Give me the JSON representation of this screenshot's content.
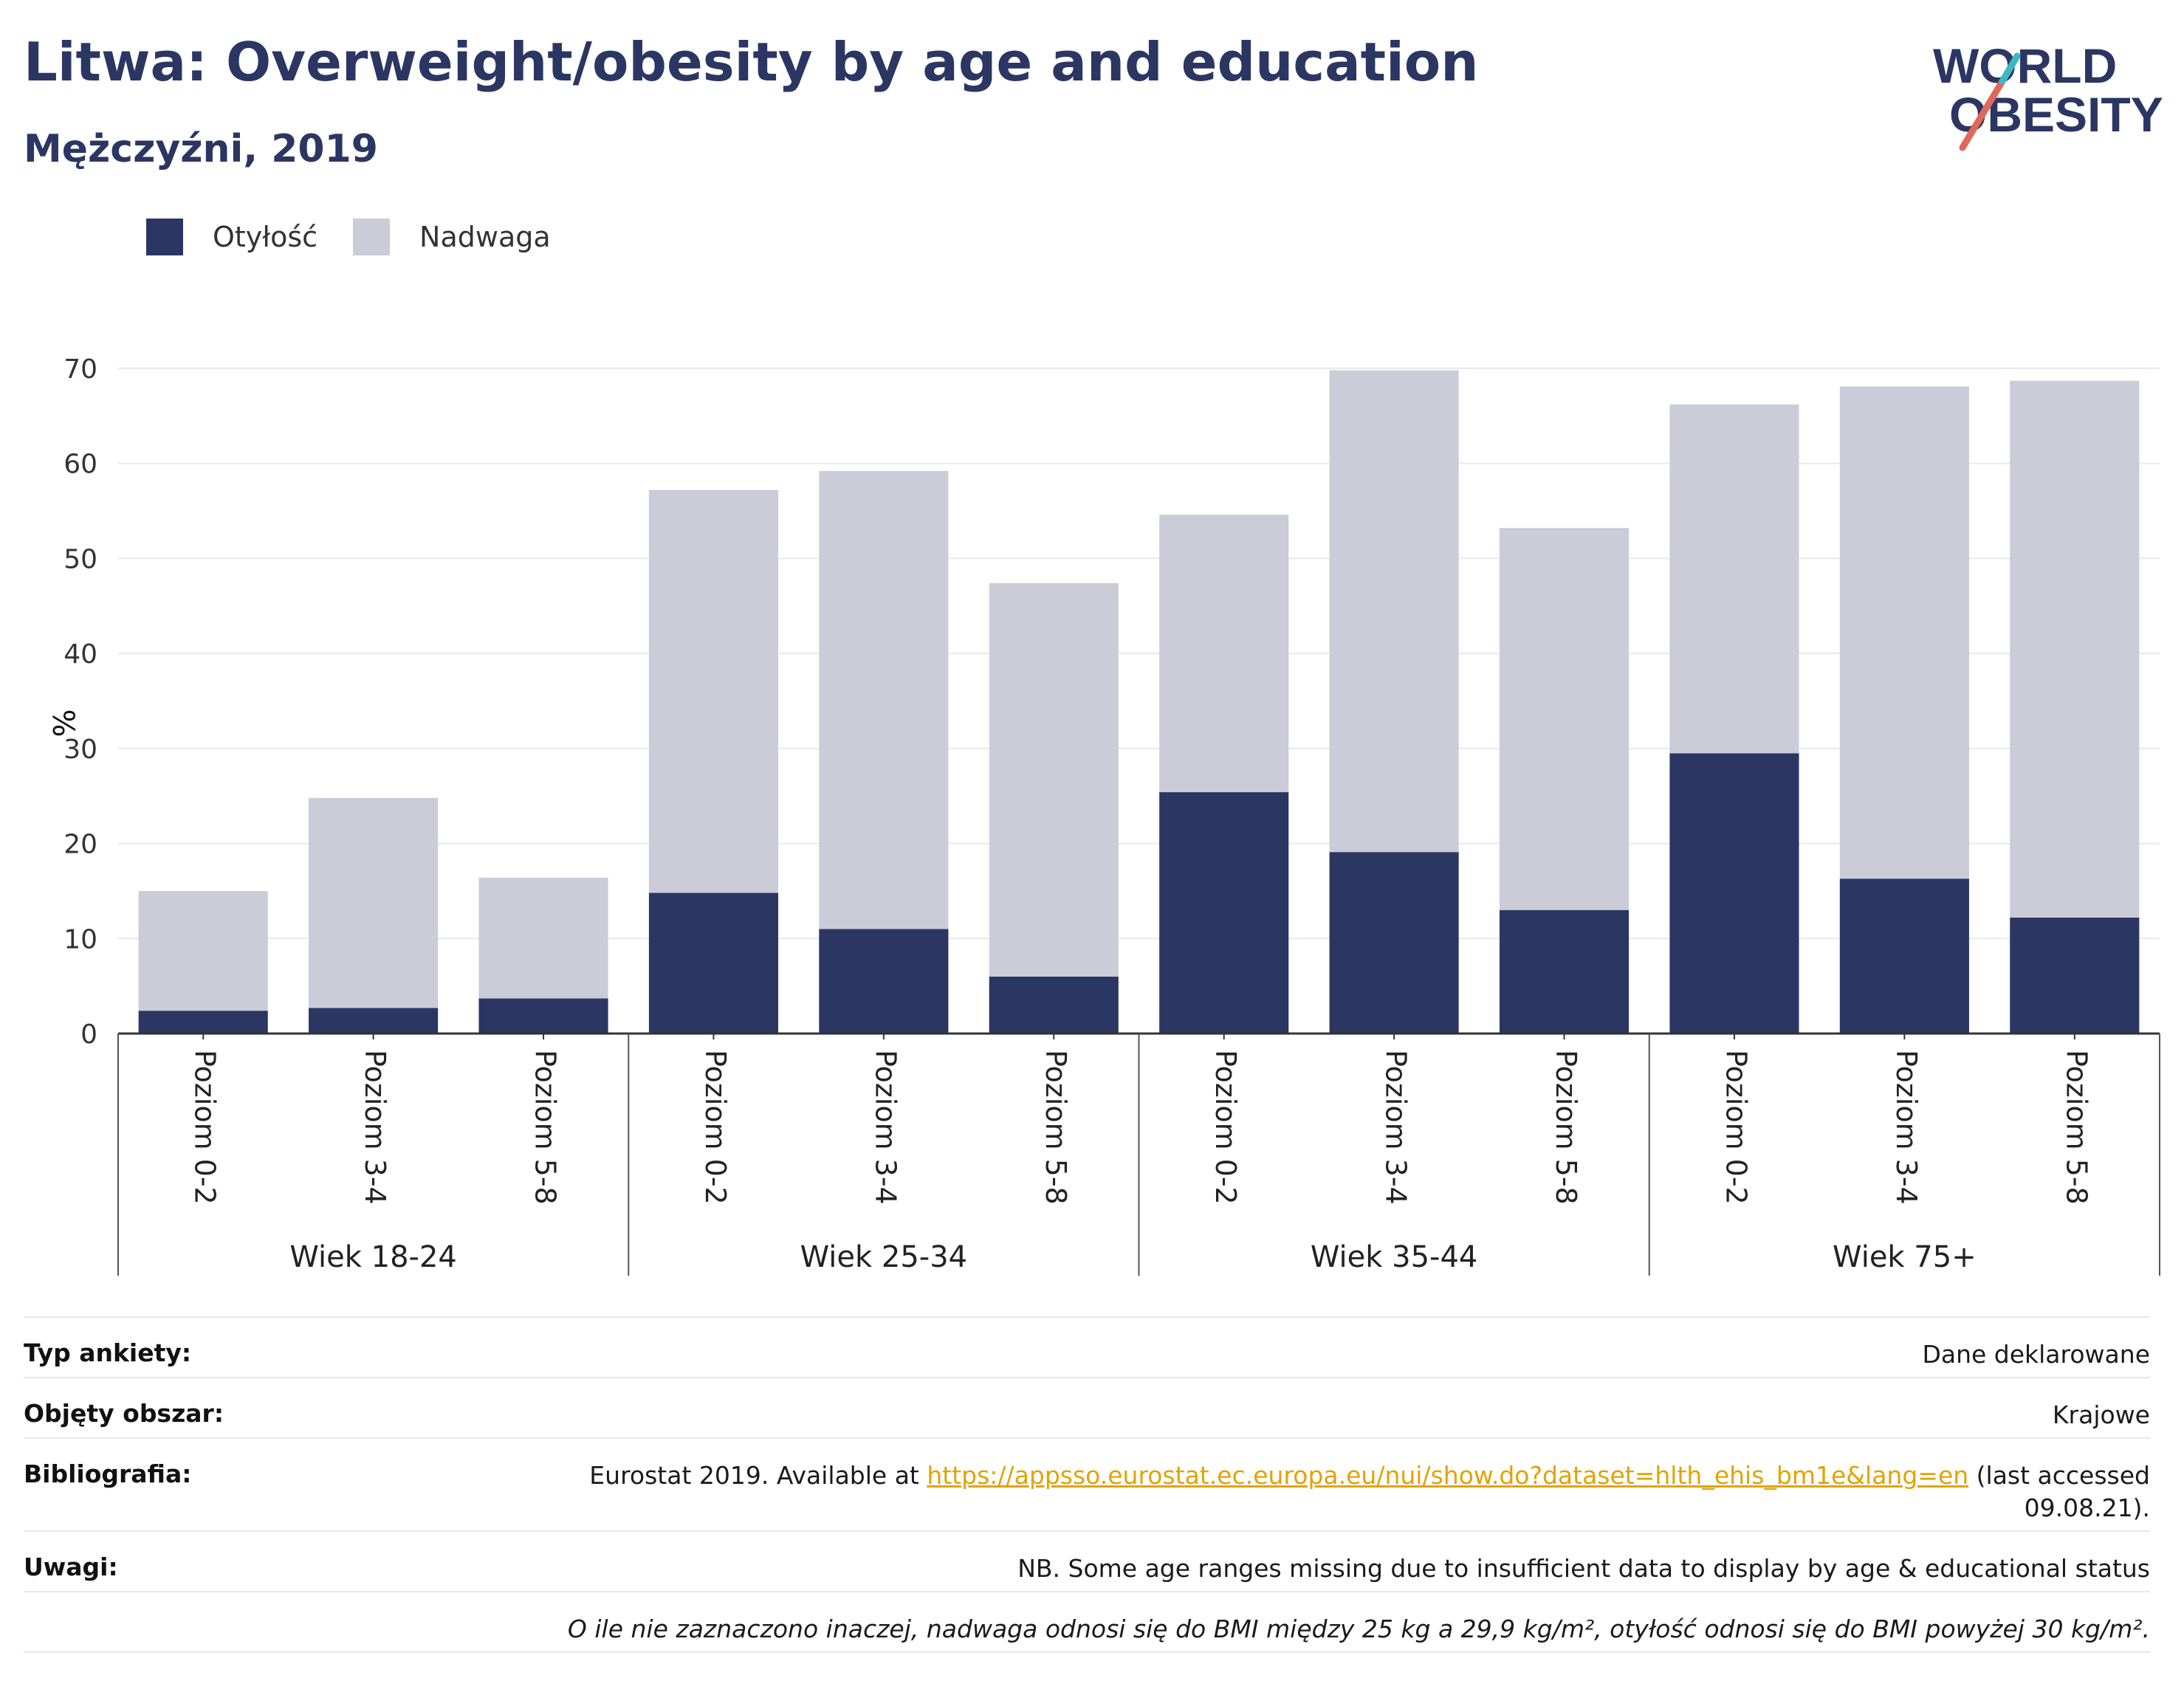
{
  "header": {
    "title": "Litwa: Overweight/obesity by age and education",
    "subtitle": "Mężczyźni, 2019"
  },
  "logo": {
    "line1": "WORLD",
    "line2": "OBESITY"
  },
  "colors": {
    "obesity": "#2b3663",
    "overweight": "#cbccd8",
    "title": "#2b3663",
    "link": "#e0a400"
  },
  "chart_data": {
    "type": "bar",
    "stacked": true,
    "ylabel": "%",
    "xlabel": "",
    "ylim": [
      0,
      70
    ],
    "yticks": [
      0,
      10,
      20,
      30,
      40,
      50,
      60,
      70
    ],
    "grid": true,
    "legend_position": "top-left",
    "groups": [
      "Wiek 18-24",
      "Wiek 25-34",
      "Wiek 35-44",
      "Wiek 75+"
    ],
    "categories": [
      "Poziom 0-2",
      "Poziom 3-4",
      "Poziom 5-8",
      "Poziom 0-2",
      "Poziom 3-4",
      "Poziom 5-8",
      "Poziom 0-2",
      "Poziom 3-4",
      "Poziom 5-8",
      "Poziom 0-2",
      "Poziom 3-4",
      "Poziom 5-8"
    ],
    "series": [
      {
        "name": "Otyłość",
        "values": [
          2.4,
          2.7,
          3.7,
          14.8,
          11.0,
          6.0,
          25.4,
          19.1,
          13.0,
          29.5,
          16.3,
          12.2
        ]
      },
      {
        "name": "Nadwaga",
        "values": [
          12.6,
          22.1,
          12.7,
          42.4,
          48.2,
          41.4,
          29.2,
          50.7,
          40.2,
          36.7,
          51.8,
          56.5
        ]
      }
    ]
  },
  "info": {
    "survey_label": "Typ ankiety:",
    "survey_value": "Dane deklarowane",
    "coverage_label": "Objęty obszar:",
    "coverage_value": "Krajowe",
    "bibliography_label": "Bibliografia:",
    "bibliography_prefix": "Eurostat 2019. Available at ",
    "bibliography_link": "https://appsso.eurostat.ec.europa.eu/nui/show.do?dataset=hlth_ehis_bm1e&lang=en",
    "bibliography_suffix": " (last accessed",
    "bibliography_date": "09.08.21).",
    "notes_label": "Uwagi:",
    "notes_value": "NB. Some age ranges missing due to insufficient data to display by age & educational status",
    "footnote": "O ile nie zaznaczono inaczej, nadwaga odnosi się do BMI między 25 kg a 29,9 kg/m², otyłość odnosi się do BMI powyżej 30 kg/m²."
  }
}
